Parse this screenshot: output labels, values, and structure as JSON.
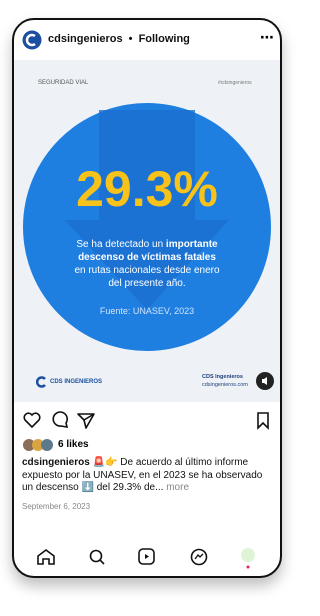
{
  "header": {
    "account": "cdsingenieros",
    "separator": "•",
    "status": "Following"
  },
  "post_image": {
    "category": "SEGURIDAD VIAL",
    "hashtag": "#cdsingenieros",
    "headline": "29.3%",
    "description": {
      "part1": "Se ha detectado un ",
      "bold": "importante descenso de víctimas fatales",
      "part2": " en rutas nacionales desde enero del presente año."
    },
    "source": "Fuente: UNASEV, 2023",
    "logo_text": "CDS INGENIEROS",
    "company": "CDS Ingenieros",
    "website": "cdsingenieros.com"
  },
  "likes": "6 likes",
  "caption": {
    "username": "cdsingenieros",
    "text": " 🚨👉 De acuerdo al último informe expuesto por la UNASEV, en el 2023 se ha observado un descenso ⬇️ del 29.3% de...",
    "more": " more"
  },
  "date": "September 6, 2023"
}
